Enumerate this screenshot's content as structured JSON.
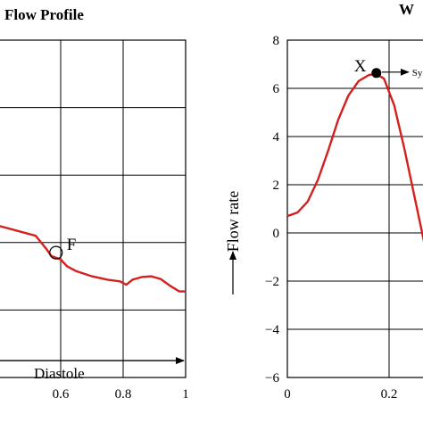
{
  "chart_data": [
    {
      "type": "line",
      "title": "Flow Profile",
      "xlim": [
        0.4,
        1.0
      ],
      "ylim": [
        -2,
        8
      ],
      "x_ticks": [
        "0.6",
        "0.8",
        "1"
      ],
      "grid": true,
      "colors": {
        "series": "#d41f1f",
        "axes": "#000000",
        "grid": "#000000"
      },
      "series": [
        {
          "x": [
            0.4,
            0.52,
            0.555,
            0.57,
            0.585,
            0.6,
            0.62,
            0.65,
            0.7,
            0.75,
            0.79,
            0.81,
            0.83,
            0.86,
            0.89,
            0.92,
            0.95,
            0.98,
            1.0
          ],
          "y": [
            2.5,
            2.2,
            1.8,
            1.6,
            1.55,
            1.5,
            1.3,
            1.15,
            1.0,
            0.9,
            0.85,
            0.75,
            0.9,
            0.98,
            1.0,
            0.92,
            0.72,
            0.55,
            0.55
          ]
        }
      ],
      "annotations": [
        {
          "label": "F",
          "x": 0.585,
          "y": 1.7,
          "marker": "open-circle"
        },
        {
          "label": "Diastole",
          "arrow_from": 0.4,
          "arrow_to": 1.0,
          "y": -1.5
        }
      ]
    },
    {
      "type": "line",
      "title": "W",
      "xlim": [
        0,
        0.45
      ],
      "ylim": [
        -6,
        8
      ],
      "x_ticks": [
        "0",
        "0.2"
      ],
      "y_ticks": [
        "8",
        "6",
        "4",
        "2",
        "0",
        "−2",
        "−4",
        "−6"
      ],
      "ylabel": "Flow rate",
      "grid": true,
      "colors": {
        "series": "#d41f1f",
        "axes": "#000000",
        "grid": "#000000"
      },
      "series": [
        {
          "x": [
            0,
            0.02,
            0.04,
            0.06,
            0.08,
            0.1,
            0.12,
            0.14,
            0.16,
            0.175,
            0.19,
            0.21,
            0.23,
            0.25,
            0.27,
            0.29,
            0.305
          ],
          "y": [
            0.7,
            0.85,
            1.3,
            2.2,
            3.4,
            4.7,
            5.7,
            6.3,
            6.55,
            6.6,
            6.4,
            5.3,
            3.5,
            1.5,
            -0.5,
            -2.2,
            -3.3
          ]
        }
      ],
      "annotations": [
        {
          "label": "X",
          "x": 0.175,
          "y": 6.6,
          "marker": "filled-circle"
        },
        {
          "label": "Sy",
          "arrow_from": 0.175,
          "y": 6.6
        }
      ]
    }
  ]
}
